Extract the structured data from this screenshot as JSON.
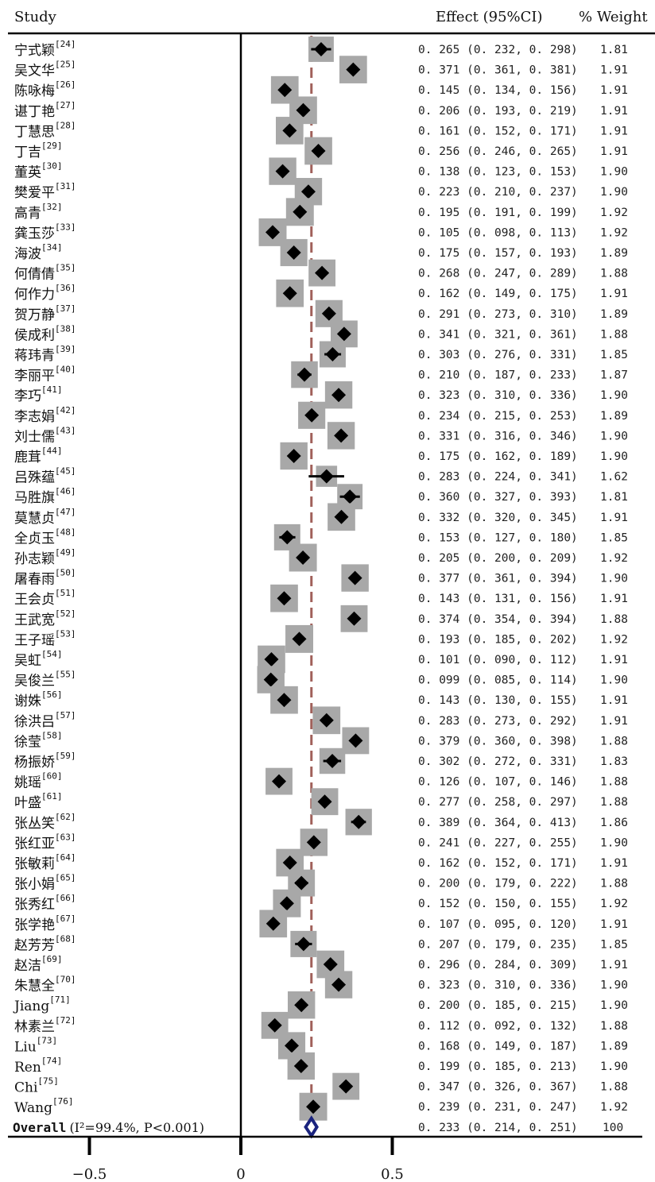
{
  "header": {
    "study": "Study",
    "effect": "Effect (95%CI)",
    "weight": "% Weight"
  },
  "chart_data": {
    "type": "forest",
    "xlim": [
      -0.5,
      1.3
    ],
    "ticks": [
      {
        "value": -0.5,
        "label": "−0.5"
      },
      {
        "value": 0,
        "label": "0"
      },
      {
        "value": 0.5,
        "label": "0.5"
      }
    ],
    "reference_line": 0.233,
    "null_line": 0,
    "colors": {
      "marker": "#000000",
      "weight_box": "#a8a8a8",
      "reference": "#a0605a",
      "overall": "#1a237e"
    },
    "studies": [
      {
        "name": "宁式颖",
        "ref": "[24]",
        "es": 0.265,
        "lo": 0.232,
        "hi": 0.298,
        "weight": "1.81"
      },
      {
        "name": "吴文华",
        "ref": "[25]",
        "es": 0.371,
        "lo": 0.361,
        "hi": 0.381,
        "weight": "1.91"
      },
      {
        "name": "陈咏梅",
        "ref": "[26]",
        "es": 0.145,
        "lo": 0.134,
        "hi": 0.156,
        "weight": "1.91"
      },
      {
        "name": "谌丁艳",
        "ref": "[27]",
        "es": 0.206,
        "lo": 0.193,
        "hi": 0.219,
        "weight": "1.91"
      },
      {
        "name": "丁慧思",
        "ref": "[28]",
        "es": 0.161,
        "lo": 0.152,
        "hi": 0.171,
        "weight": "1.91"
      },
      {
        "name": "丁吉",
        "ref": "[29]",
        "es": 0.256,
        "lo": 0.246,
        "hi": 0.265,
        "weight": "1.91"
      },
      {
        "name": "董英",
        "ref": "[30]",
        "es": 0.138,
        "lo": 0.123,
        "hi": 0.153,
        "weight": "1.90"
      },
      {
        "name": "樊爱平",
        "ref": "[31]",
        "es": 0.223,
        "lo": 0.21,
        "hi": 0.237,
        "weight": "1.90"
      },
      {
        "name": "高青",
        "ref": "[32]",
        "es": 0.195,
        "lo": 0.191,
        "hi": 0.199,
        "weight": "1.92"
      },
      {
        "name": "龚玉莎",
        "ref": "[33]",
        "es": 0.105,
        "lo": 0.098,
        "hi": 0.113,
        "weight": "1.92"
      },
      {
        "name": "海波",
        "ref": "[34]",
        "es": 0.175,
        "lo": 0.157,
        "hi": 0.193,
        "weight": "1.89"
      },
      {
        "name": "何倩倩",
        "ref": "[35]",
        "es": 0.268,
        "lo": 0.247,
        "hi": 0.289,
        "weight": "1.88"
      },
      {
        "name": "何作力",
        "ref": "[36]",
        "es": 0.162,
        "lo": 0.149,
        "hi": 0.175,
        "weight": "1.91"
      },
      {
        "name": "贺万静",
        "ref": "[37]",
        "es": 0.291,
        "lo": 0.273,
        "hi": 0.31,
        "weight": "1.89"
      },
      {
        "name": "侯成利",
        "ref": "[38]",
        "es": 0.341,
        "lo": 0.321,
        "hi": 0.361,
        "weight": "1.88"
      },
      {
        "name": "蒋玮青",
        "ref": "[39]",
        "es": 0.303,
        "lo": 0.276,
        "hi": 0.331,
        "weight": "1.85"
      },
      {
        "name": "李丽平",
        "ref": "[40]",
        "es": 0.21,
        "lo": 0.187,
        "hi": 0.233,
        "weight": "1.87"
      },
      {
        "name": "李巧",
        "ref": "[41]",
        "es": 0.323,
        "lo": 0.31,
        "hi": 0.336,
        "weight": "1.90"
      },
      {
        "name": "李志娟",
        "ref": "[42]",
        "es": 0.234,
        "lo": 0.215,
        "hi": 0.253,
        "weight": "1.89"
      },
      {
        "name": "刘士儒",
        "ref": "[43]",
        "es": 0.331,
        "lo": 0.316,
        "hi": 0.346,
        "weight": "1.90"
      },
      {
        "name": "鹿茸",
        "ref": "[44]",
        "es": 0.175,
        "lo": 0.162,
        "hi": 0.189,
        "weight": "1.90"
      },
      {
        "name": "吕殊蕴",
        "ref": "[45]",
        "es": 0.283,
        "lo": 0.224,
        "hi": 0.341,
        "weight": "1.62"
      },
      {
        "name": "马胜旗",
        "ref": "[46]",
        "es": 0.36,
        "lo": 0.327,
        "hi": 0.393,
        "weight": "1.81"
      },
      {
        "name": "莫慧贞",
        "ref": "[47]",
        "es": 0.332,
        "lo": 0.32,
        "hi": 0.345,
        "weight": "1.91"
      },
      {
        "name": "全贞玉",
        "ref": "[48]",
        "es": 0.153,
        "lo": 0.127,
        "hi": 0.18,
        "weight": "1.85"
      },
      {
        "name": "孙志颖",
        "ref": "[49]",
        "es": 0.205,
        "lo": 0.2,
        "hi": 0.209,
        "weight": "1.92"
      },
      {
        "name": "屠春雨",
        "ref": "[50]",
        "es": 0.377,
        "lo": 0.361,
        "hi": 0.394,
        "weight": "1.90"
      },
      {
        "name": "王会贞",
        "ref": "[51]",
        "es": 0.143,
        "lo": 0.131,
        "hi": 0.156,
        "weight": "1.91"
      },
      {
        "name": "王武宽",
        "ref": "[52]",
        "es": 0.374,
        "lo": 0.354,
        "hi": 0.394,
        "weight": "1.88"
      },
      {
        "name": "王子瑶",
        "ref": "[53]",
        "es": 0.193,
        "lo": 0.185,
        "hi": 0.202,
        "weight": "1.92"
      },
      {
        "name": "吴虹",
        "ref": "[54]",
        "es": 0.101,
        "lo": 0.09,
        "hi": 0.112,
        "weight": "1.91"
      },
      {
        "name": "吴俊兰",
        "ref": "[55]",
        "es": 0.099,
        "lo": 0.085,
        "hi": 0.114,
        "weight": "1.90"
      },
      {
        "name": "谢姝",
        "ref": "[56]",
        "es": 0.143,
        "lo": 0.13,
        "hi": 0.155,
        "weight": "1.91"
      },
      {
        "name": "徐洪吕",
        "ref": "[57]",
        "es": 0.283,
        "lo": 0.273,
        "hi": 0.292,
        "weight": "1.91"
      },
      {
        "name": "徐莹",
        "ref": "[58]",
        "es": 0.379,
        "lo": 0.36,
        "hi": 0.398,
        "weight": "1.88"
      },
      {
        "name": "杨振娇",
        "ref": "[59]",
        "es": 0.302,
        "lo": 0.272,
        "hi": 0.331,
        "weight": "1.83"
      },
      {
        "name": "姚瑶",
        "ref": "[60]",
        "es": 0.126,
        "lo": 0.107,
        "hi": 0.146,
        "weight": "1.88"
      },
      {
        "name": "叶盛",
        "ref": "[61]",
        "es": 0.277,
        "lo": 0.258,
        "hi": 0.297,
        "weight": "1.88"
      },
      {
        "name": "张丛笑",
        "ref": "[62]",
        "es": 0.389,
        "lo": 0.364,
        "hi": 0.413,
        "weight": "1.86"
      },
      {
        "name": "张红亚",
        "ref": "[63]",
        "es": 0.241,
        "lo": 0.227,
        "hi": 0.255,
        "weight": "1.90"
      },
      {
        "name": "张敏莉",
        "ref": "[64]",
        "es": 0.162,
        "lo": 0.152,
        "hi": 0.171,
        "weight": "1.91"
      },
      {
        "name": "张小娟",
        "ref": "[65]",
        "es": 0.2,
        "lo": 0.179,
        "hi": 0.222,
        "weight": "1.88"
      },
      {
        "name": "张秀红",
        "ref": "[66]",
        "es": 0.152,
        "lo": 0.15,
        "hi": 0.155,
        "weight": "1.92"
      },
      {
        "name": "张学艳",
        "ref": "[67]",
        "es": 0.107,
        "lo": 0.095,
        "hi": 0.12,
        "weight": "1.91"
      },
      {
        "name": "赵芳芳",
        "ref": "[68]",
        "es": 0.207,
        "lo": 0.179,
        "hi": 0.235,
        "weight": "1.85"
      },
      {
        "name": "赵洁",
        "ref": "[69]",
        "es": 0.296,
        "lo": 0.284,
        "hi": 0.309,
        "weight": "1.91"
      },
      {
        "name": "朱慧全",
        "ref": "[70]",
        "es": 0.323,
        "lo": 0.31,
        "hi": 0.336,
        "weight": "1.90"
      },
      {
        "name": "Jiang",
        "ref": "[71]",
        "es": 0.2,
        "lo": 0.185,
        "hi": 0.215,
        "weight": "1.90"
      },
      {
        "name": "林素兰",
        "ref": "[72]",
        "es": 0.112,
        "lo": 0.092,
        "hi": 0.132,
        "weight": "1.88"
      },
      {
        "name": "Liu",
        "ref": "[73]",
        "es": 0.168,
        "lo": 0.149,
        "hi": 0.187,
        "weight": "1.89"
      },
      {
        "name": "Ren",
        "ref": "[74]",
        "es": 0.199,
        "lo": 0.185,
        "hi": 0.213,
        "weight": "1.90"
      },
      {
        "name": "Chi",
        "ref": "[75]",
        "es": 0.347,
        "lo": 0.326,
        "hi": 0.367,
        "weight": "1.88"
      },
      {
        "name": "Wang",
        "ref": "[76]",
        "es": 0.239,
        "lo": 0.231,
        "hi": 0.247,
        "weight": "1.92"
      }
    ],
    "overall": {
      "label_prefix": "Overall",
      "label_stats": "(I²=99.4%, P<0.001)",
      "es": 0.233,
      "lo": 0.214,
      "hi": 0.251,
      "weight": "100"
    }
  }
}
